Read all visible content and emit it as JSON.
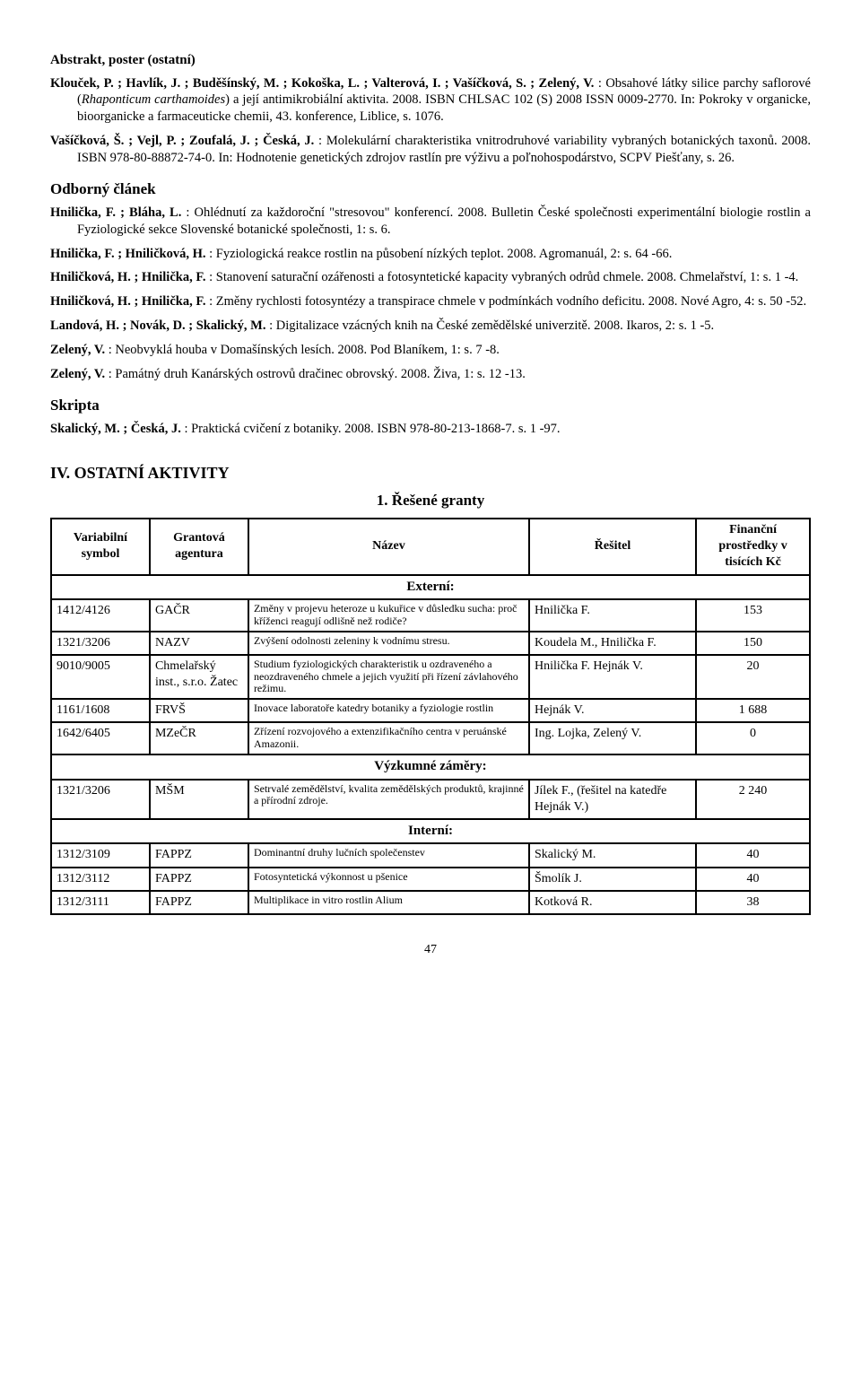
{
  "headings": {
    "abstrakt": "Abstrakt, poster (ostatní)",
    "odborny": "Odborný článek",
    "skripta": "Skripta",
    "ostatni": "IV.  OSTATNÍ AKTIVITY",
    "granty": "1. Řešené granty"
  },
  "abstrakt_entries": [
    {
      "bold": "Klouček, P. ; Havlík, J. ; Buděšínský, M. ; Kokoška, L. ; Valterová, I. ; Vašíčková, S. ; Zelený, V.",
      "rest": " : Obsahové látky silice parchy saflorové (",
      "ital": "Rhaponticum carthamoides",
      "rest2": ") a její antimikrobiální aktivita. 2008. ISBN CHLSAC 102 (S) 2008 ISSN 0009-2770. In: Pokroky v organicke, bioorganicke a farmaceuticke chemii, 43. konference, Liblice, s. 1076."
    },
    {
      "bold": "Vašíčková, Š. ; Vejl, P. ; Zoufalá, J. ; Česká, J.",
      "rest": " : Molekulární charakteristika vnitrodruhové variability vybraných botanických taxonů. 2008. ISBN 978-80-88872-74-0. In: Hodnotenie genetických zdrojov rastlín pre výživu a poľnohospodárstvo, SCPV Piešťany, s. 26."
    }
  ],
  "odborny_entries": [
    {
      "bold": "Hnilička, F. ; Bláha, L.",
      "rest": " : Ohlédnutí za každoroční \"stresovou\" konferencí. 2008. Bulletin České společnosti experimentální biologie rostlin a Fyziologické sekce Slovenské botanické společnosti, 1: s. 6."
    },
    {
      "bold": "Hnilička, F. ; Hniličková, H.",
      "rest": " : Fyziologická reakce rostlin na působení nízkých teplot. 2008. Agromanuál, 2: s. 64 -66."
    },
    {
      "bold": "Hniličková, H. ; Hnilička, F.",
      "rest": " : Stanovení saturační ozářenosti a fotosyntetické kapacity vybraných odrůd chmele. 2008. Chmelařství, 1: s. 1 -4."
    },
    {
      "bold": "Hniličková, H. ; Hnilička, F.",
      "rest": " : Změny rychlosti fotosyntézy a transpirace chmele v podmínkách vodního deficitu. 2008. Nové Agro, 4: s. 50 -52."
    },
    {
      "bold": "Landová, H. ; Novák, D. ; Skalický, M.",
      "rest": " : Digitalizace vzácných knih na České zemědělské univerzitě. 2008. Ikaros, 2: s. 1 -5."
    },
    {
      "bold": "Zelený, V.",
      "rest": " : Neobvyklá houba v Domašínských lesích. 2008. Pod Blaníkem, 1: s. 7 -8."
    },
    {
      "bold": "Zelený, V.",
      "rest": " : Památný druh Kanárských ostrovů dračinec obrovský. 2008. Živa, 1: s. 12 -13."
    }
  ],
  "skripta_entry": {
    "bold": "Skalický, M. ; Česká, J.",
    "rest": " : Praktická cvičení z botaniky. 2008. ISBN 978-80-213-1868-7. s. 1 -97."
  },
  "table": {
    "columns": [
      "Variabilní symbol",
      "Grantová agentura",
      "Název",
      "Řešitel",
      "Finanční prostředky v tisících Kč"
    ],
    "col_widths_pct": [
      13,
      13,
      37,
      22,
      15
    ],
    "sections": [
      {
        "title": "Externí:",
        "rows": [
          {
            "sym": "1412/4126",
            "ag": "GAČR",
            "nazev": "Změny v projevu heteroze u kukuřice v důsledku sucha: proč kříženci reagují odlišně než rodiče?",
            "res": "Hnilička F.",
            "fin": "153"
          },
          {
            "sym": "1321/3206",
            "ag": "NAZV",
            "nazev": "Zvýšení odolnosti zeleniny k vodnímu stresu.",
            "res": "Koudela M., Hnilička F.",
            "fin": "150"
          },
          {
            "sym": "9010/9005",
            "ag": "Chmelařský inst., s.r.o. Žatec",
            "nazev": "Studium fyziologických charakteristik u ozdraveného a neozdraveného chmele a jejich využití při řízení závlahového režimu.",
            "res": "Hnilička F. Hejnák V.",
            "fin": "20"
          },
          {
            "sym": "1161/1608",
            "ag": "FRVŠ",
            "nazev": "Inovace laboratoře katedry botaniky a fyziologie rostlin",
            "res": "Hejnák V.",
            "fin": "1 688"
          },
          {
            "sym": "1642/6405",
            "ag": "MZeČR",
            "nazev": "Zřízení rozvojového a extenzifikačního centra v peruánské Amazonii.",
            "res": "Ing. Lojka, Zelený V.",
            "fin": "0"
          }
        ]
      },
      {
        "title": "Výzkumné záměry:",
        "rows": [
          {
            "sym": "1321/3206",
            "ag": "MŠM",
            "nazev": "Setrvalé zemědělství, kvalita zemědělských produktů, krajinné a přírodní zdroje.",
            "res": "Jílek F., (řešitel na katedře Hejnák V.)",
            "fin": "2 240"
          }
        ]
      },
      {
        "title": "Interní:",
        "rows": [
          {
            "sym": "1312/3109",
            "ag": "FAPPZ",
            "nazev": "Dominantní druhy lučních společenstev",
            "res": "Skalický M.",
            "fin": "40"
          },
          {
            "sym": "1312/3112",
            "ag": "FAPPZ",
            "nazev": "Fotosyntetická výkonnost u pšenice",
            "res": "Šmolík J.",
            "fin": "40"
          },
          {
            "sym": "1312/3111",
            "ag": "FAPPZ",
            "nazev": "Multiplikace  in vitro rostlin Alium",
            "res": "Kotková R.",
            "fin": "38"
          }
        ]
      }
    ]
  },
  "page_number": "47"
}
